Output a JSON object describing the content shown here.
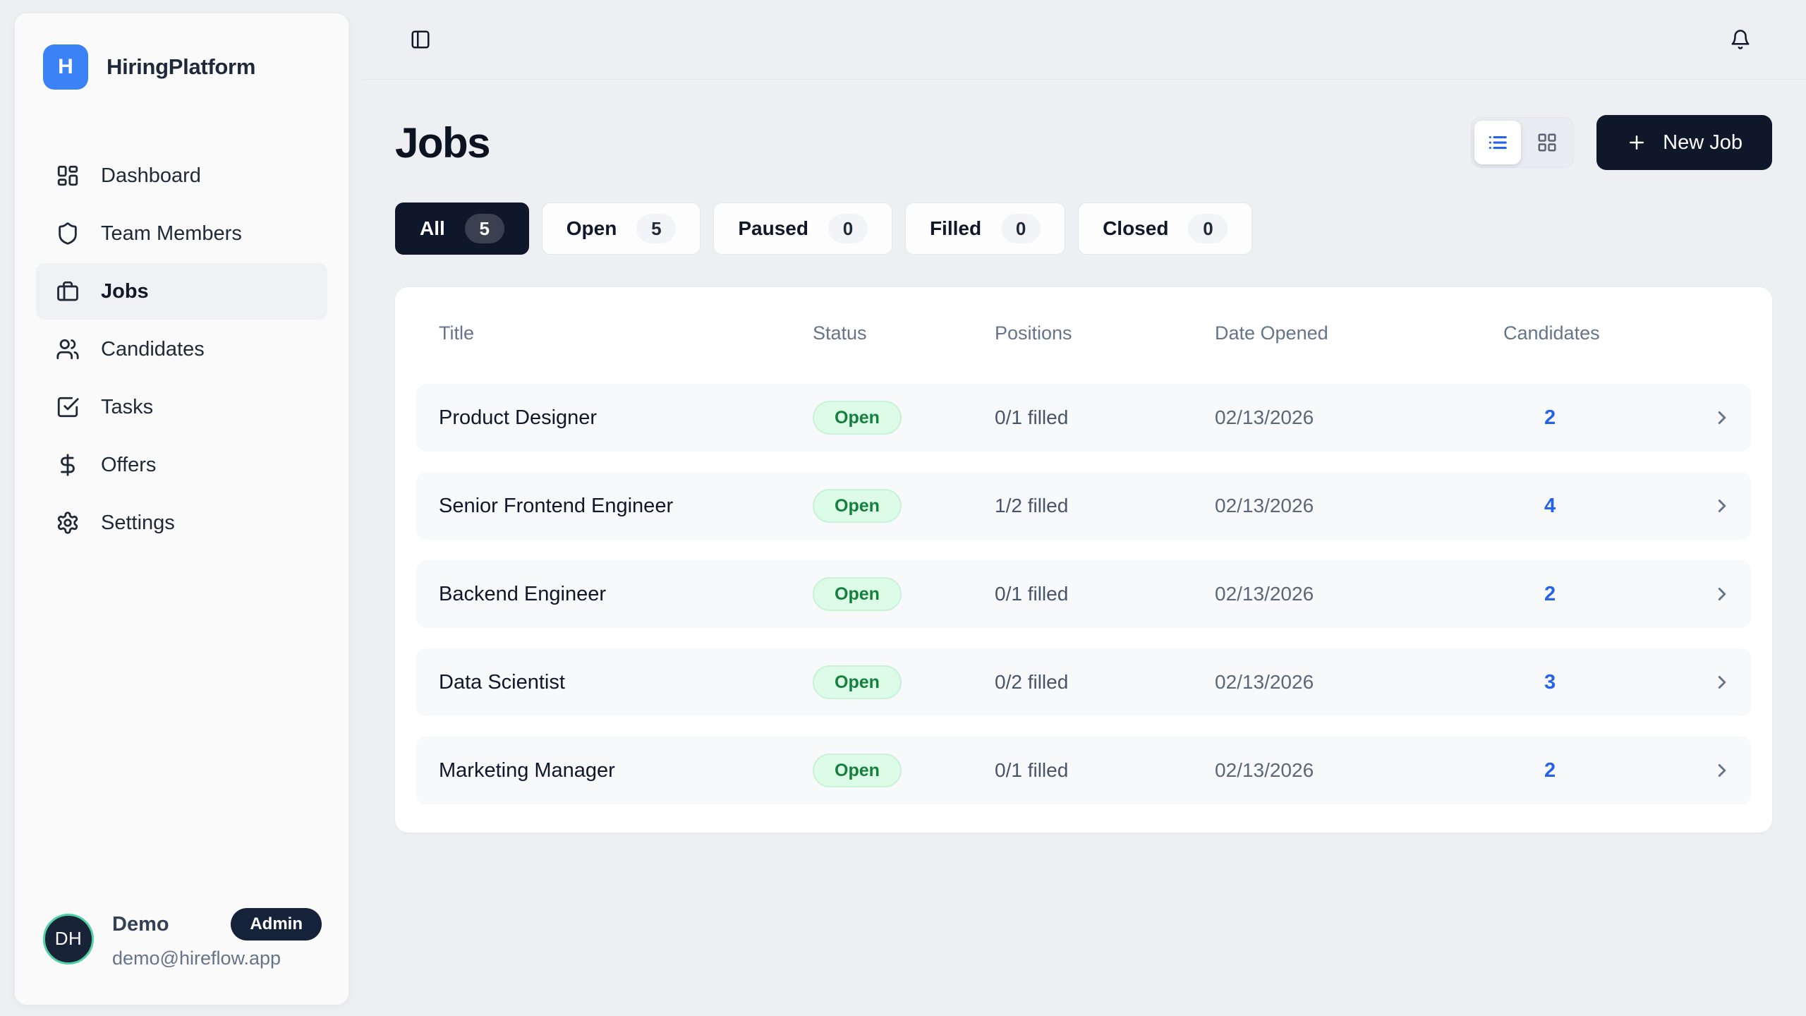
{
  "brand": {
    "initial": "H",
    "name": "HiringPlatform"
  },
  "sidebar": {
    "items": [
      {
        "label": "Dashboard",
        "icon": "dashboard-icon",
        "active": false
      },
      {
        "label": "Team Members",
        "icon": "shield-icon",
        "active": false
      },
      {
        "label": "Jobs",
        "icon": "briefcase-icon",
        "active": true
      },
      {
        "label": "Candidates",
        "icon": "users-icon",
        "active": false
      },
      {
        "label": "Tasks",
        "icon": "check-square-icon",
        "active": false
      },
      {
        "label": "Offers",
        "icon": "dollar-icon",
        "active": false
      },
      {
        "label": "Settings",
        "icon": "gear-icon",
        "active": false
      }
    ]
  },
  "user": {
    "initials": "DH",
    "name": "Demo",
    "role_badge": "Admin",
    "email": "demo@hireflow.app"
  },
  "topbar": {
    "icons": [
      "panel-left-icon",
      "bell-icon"
    ]
  },
  "page": {
    "title": "Jobs"
  },
  "toolbar": {
    "new_job_label": "New Job",
    "view_modes": [
      {
        "icon": "list-icon",
        "active": true
      },
      {
        "icon": "grid-icon",
        "active": false
      }
    ]
  },
  "filters": [
    {
      "label": "All",
      "count": "5",
      "active": true
    },
    {
      "label": "Open",
      "count": "5",
      "active": false
    },
    {
      "label": "Paused",
      "count": "0",
      "active": false
    },
    {
      "label": "Filled",
      "count": "0",
      "active": false
    },
    {
      "label": "Closed",
      "count": "0",
      "active": false
    }
  ],
  "table": {
    "columns": [
      "Title",
      "Status",
      "Positions",
      "Date Opened",
      "Candidates"
    ],
    "rows": [
      {
        "title": "Product Designer",
        "status": "Open",
        "positions": "0/1 filled",
        "date_opened": "02/13/2026",
        "candidates": "2"
      },
      {
        "title": "Senior Frontend Engineer",
        "status": "Open",
        "positions": "1/2 filled",
        "date_opened": "02/13/2026",
        "candidates": "4"
      },
      {
        "title": "Backend Engineer",
        "status": "Open",
        "positions": "0/1 filled",
        "date_opened": "02/13/2026",
        "candidates": "2"
      },
      {
        "title": "Data Scientist",
        "status": "Open",
        "positions": "0/2 filled",
        "date_opened": "02/13/2026",
        "candidates": "3"
      },
      {
        "title": "Marketing Manager",
        "status": "Open",
        "positions": "0/1 filled",
        "date_opened": "02/13/2026",
        "candidates": "2"
      }
    ]
  },
  "colors": {
    "brand_blue": "#3b82f6",
    "navy": "#0f172a",
    "accent_blue": "#2563eb",
    "status_open_bg": "#dcfce7",
    "status_open_text": "#15803d",
    "avatar_ring": "#4fd1a5",
    "page_bg": "#edeff3",
    "muted_text": "#64748b"
  }
}
